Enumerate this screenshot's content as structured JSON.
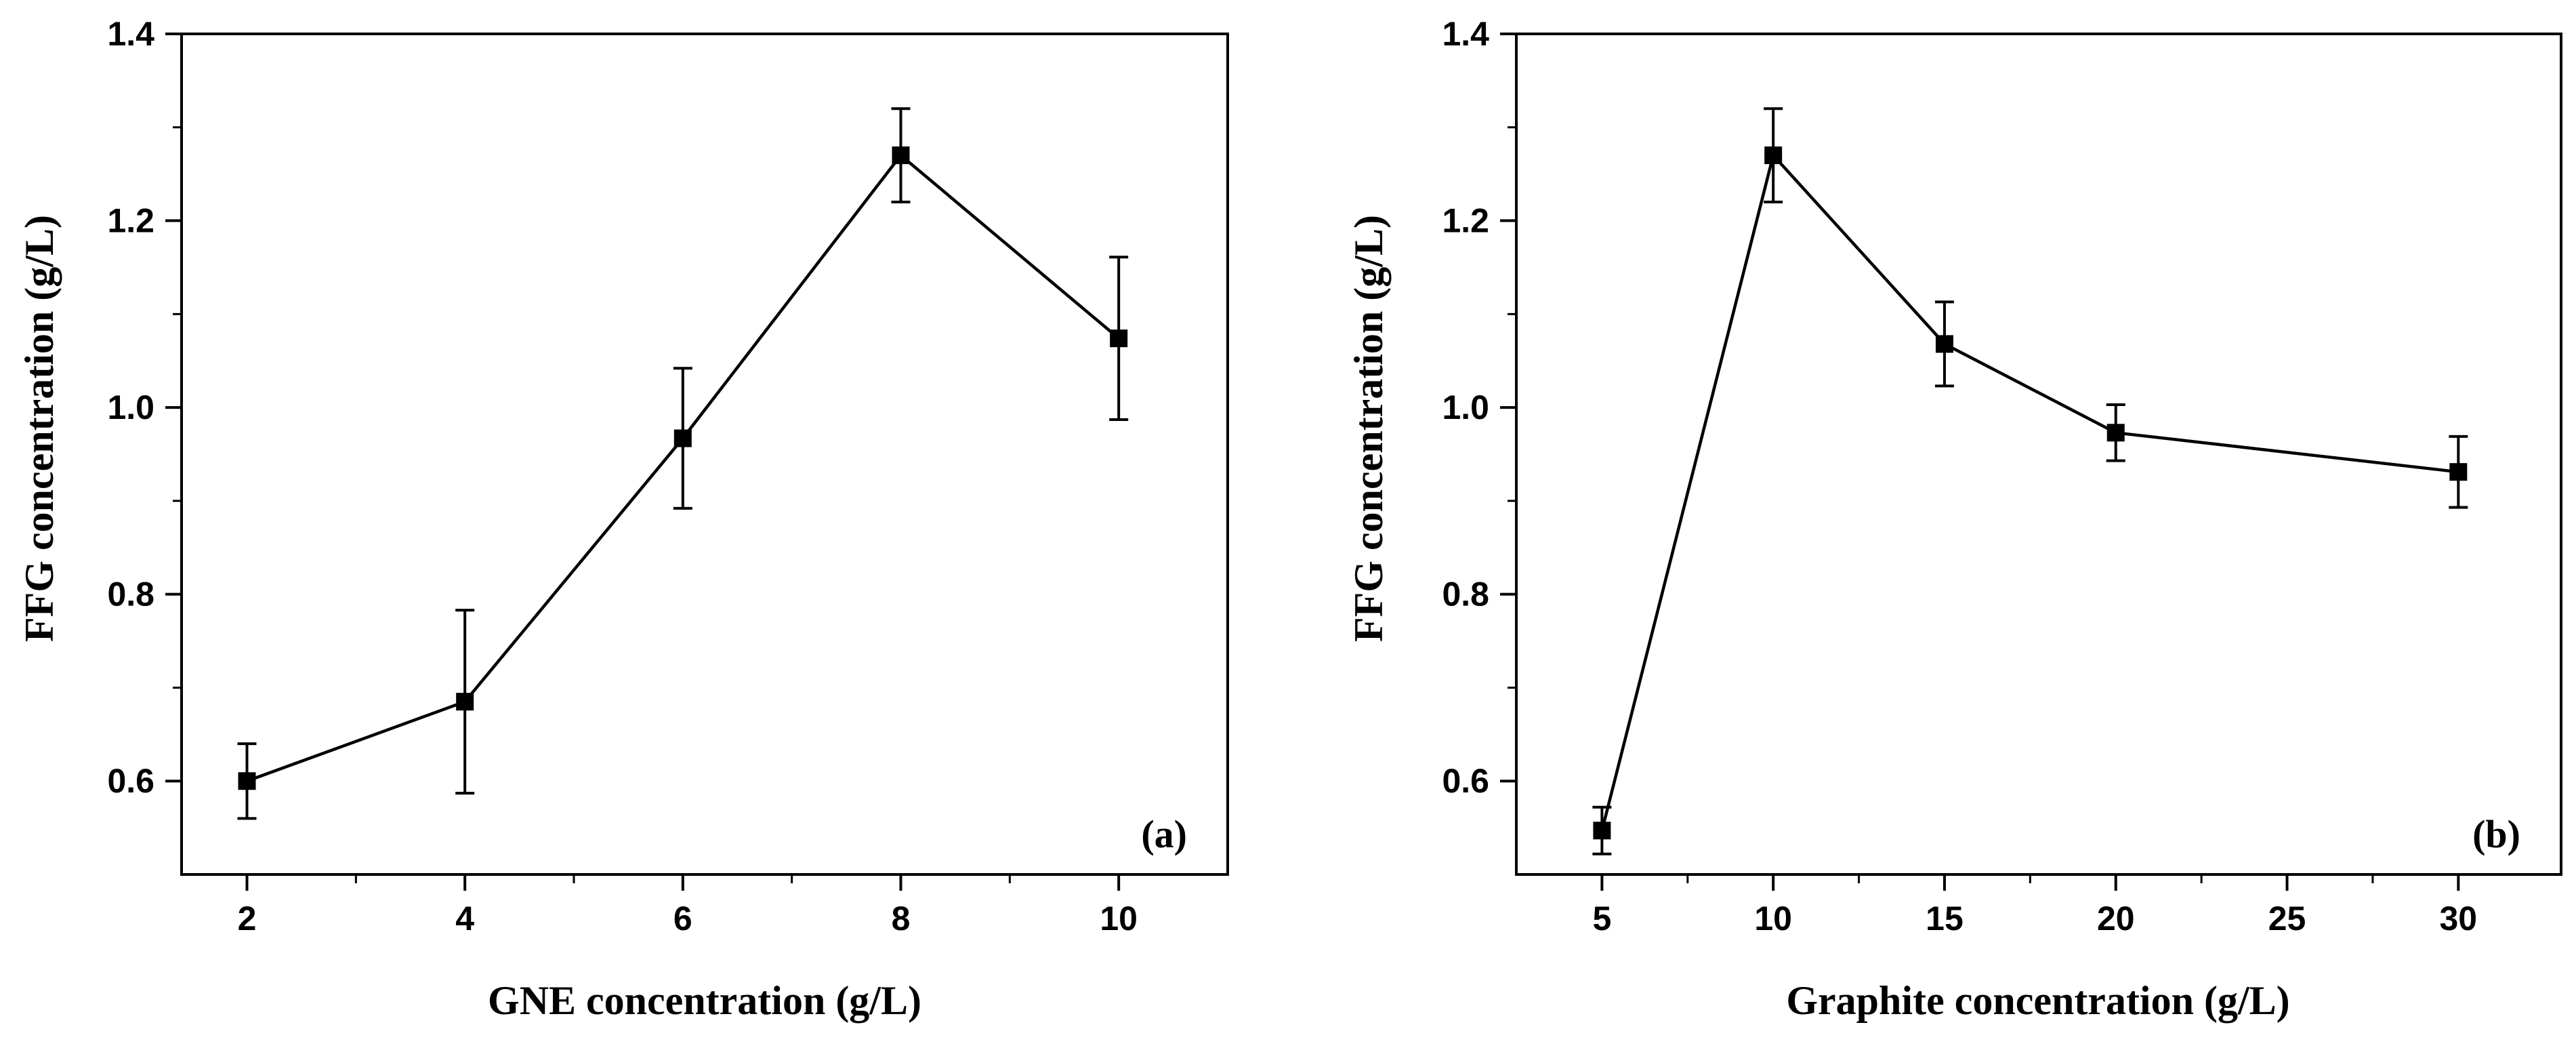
{
  "chart_data": [
    {
      "type": "line",
      "panel_label": "(a)",
      "xlabel": "GNE concentration (g/L)",
      "ylabel": "FFG concentration (g/L)",
      "xlim": [
        1.4,
        11
      ],
      "ylim": [
        0.5,
        1.4
      ],
      "xticks": [
        2,
        4,
        6,
        8,
        10
      ],
      "xtick_labels": [
        "2",
        "4",
        "6",
        "8",
        "10"
      ],
      "xminor": [
        3,
        5,
        7,
        9
      ],
      "yticks": [
        0.6,
        0.8,
        1.0,
        1.2,
        1.4
      ],
      "ytick_labels": [
        "0.6",
        "0.8",
        "1.0",
        "1.2",
        "1.4"
      ],
      "yminor": [
        0.7,
        0.9,
        1.1,
        1.3
      ],
      "grid": false,
      "series": [
        {
          "name": "FFG",
          "marker": "square",
          "x": [
            2,
            4,
            6,
            8,
            10
          ],
          "y": [
            0.6,
            0.685,
            0.967,
            1.27,
            1.074
          ],
          "yerr": [
            0.04,
            0.098,
            0.075,
            0.05,
            0.087
          ]
        }
      ]
    },
    {
      "type": "line",
      "panel_label": "(b)",
      "xlabel": "Graphite concentration (g/L)",
      "ylabel": "FFG concentration (g/L)",
      "xlim": [
        2.5,
        33
      ],
      "ylim": [
        0.5,
        1.4
      ],
      "xticks": [
        5,
        10,
        15,
        20,
        25,
        30
      ],
      "xtick_labels": [
        "5",
        "10",
        "15",
        "20",
        "25",
        "30"
      ],
      "xminor": [
        7.5,
        12.5,
        17.5,
        22.5,
        27.5
      ],
      "yticks": [
        0.6,
        0.8,
        1.0,
        1.2,
        1.4
      ],
      "ytick_labels": [
        "0.6",
        "0.8",
        "1.0",
        "1.2",
        "1.4"
      ],
      "yminor": [
        0.7,
        0.9,
        1.1,
        1.3
      ],
      "grid": false,
      "series": [
        {
          "name": "FFG",
          "marker": "square",
          "x": [
            5,
            10,
            15,
            20,
            30
          ],
          "y": [
            0.547,
            1.27,
            1.068,
            0.973,
            0.931
          ],
          "yerr": [
            0.025,
            0.05,
            0.045,
            0.03,
            0.038
          ]
        }
      ]
    }
  ]
}
